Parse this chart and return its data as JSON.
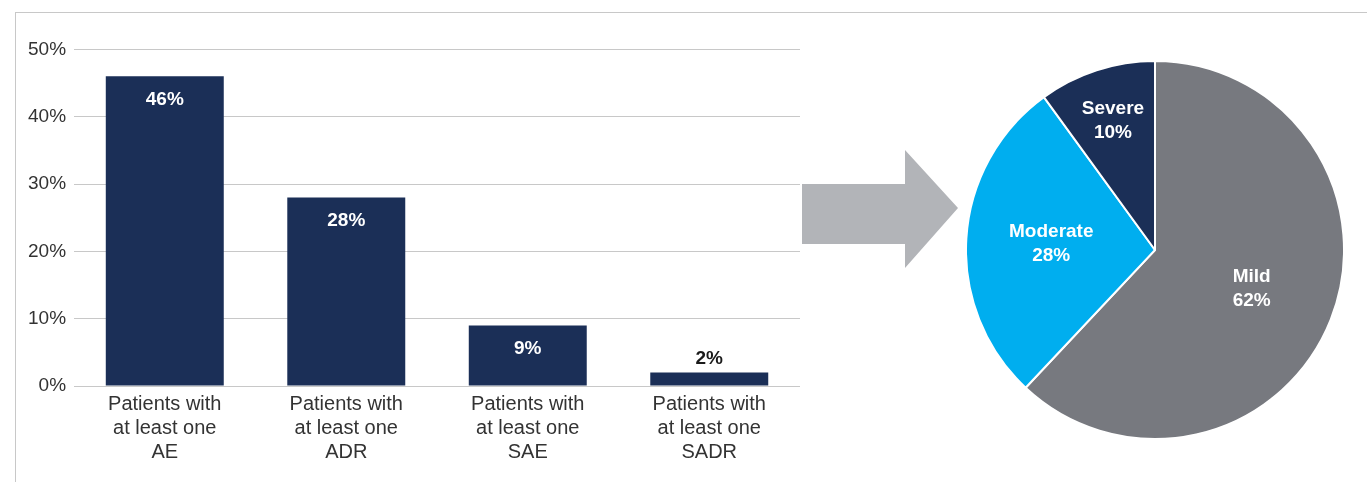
{
  "chart_data": [
    {
      "type": "bar",
      "categories": [
        "Patients with at least one AE",
        "Patients with at least one ADR",
        "Patients with at least one SAE",
        "Patients with at least one SADR"
      ],
      "values": [
        46,
        28,
        9,
        2
      ],
      "color": "#1b2f57",
      "value_labels": [
        "46%",
        "28%",
        "9%",
        "2%"
      ],
      "ylim": [
        0,
        50
      ],
      "yticks": [
        {
          "value": 0,
          "label": "0%"
        },
        {
          "value": 10,
          "label": "10%"
        },
        {
          "value": 20,
          "label": "20%"
        },
        {
          "value": 30,
          "label": "30%"
        },
        {
          "value": 40,
          "label": "40%"
        },
        {
          "value": 50,
          "label": "50%"
        }
      ],
      "grid": "y",
      "legend": false
    },
    {
      "type": "pie",
      "categories": [
        "Mild",
        "Moderate",
        "Severe"
      ],
      "values": [
        62,
        28,
        10
      ],
      "colors": [
        "#77797f",
        "#00aeef",
        "#1b2f57"
      ],
      "value_labels": [
        "62%",
        "28%",
        "10%"
      ],
      "legend": false
    }
  ]
}
